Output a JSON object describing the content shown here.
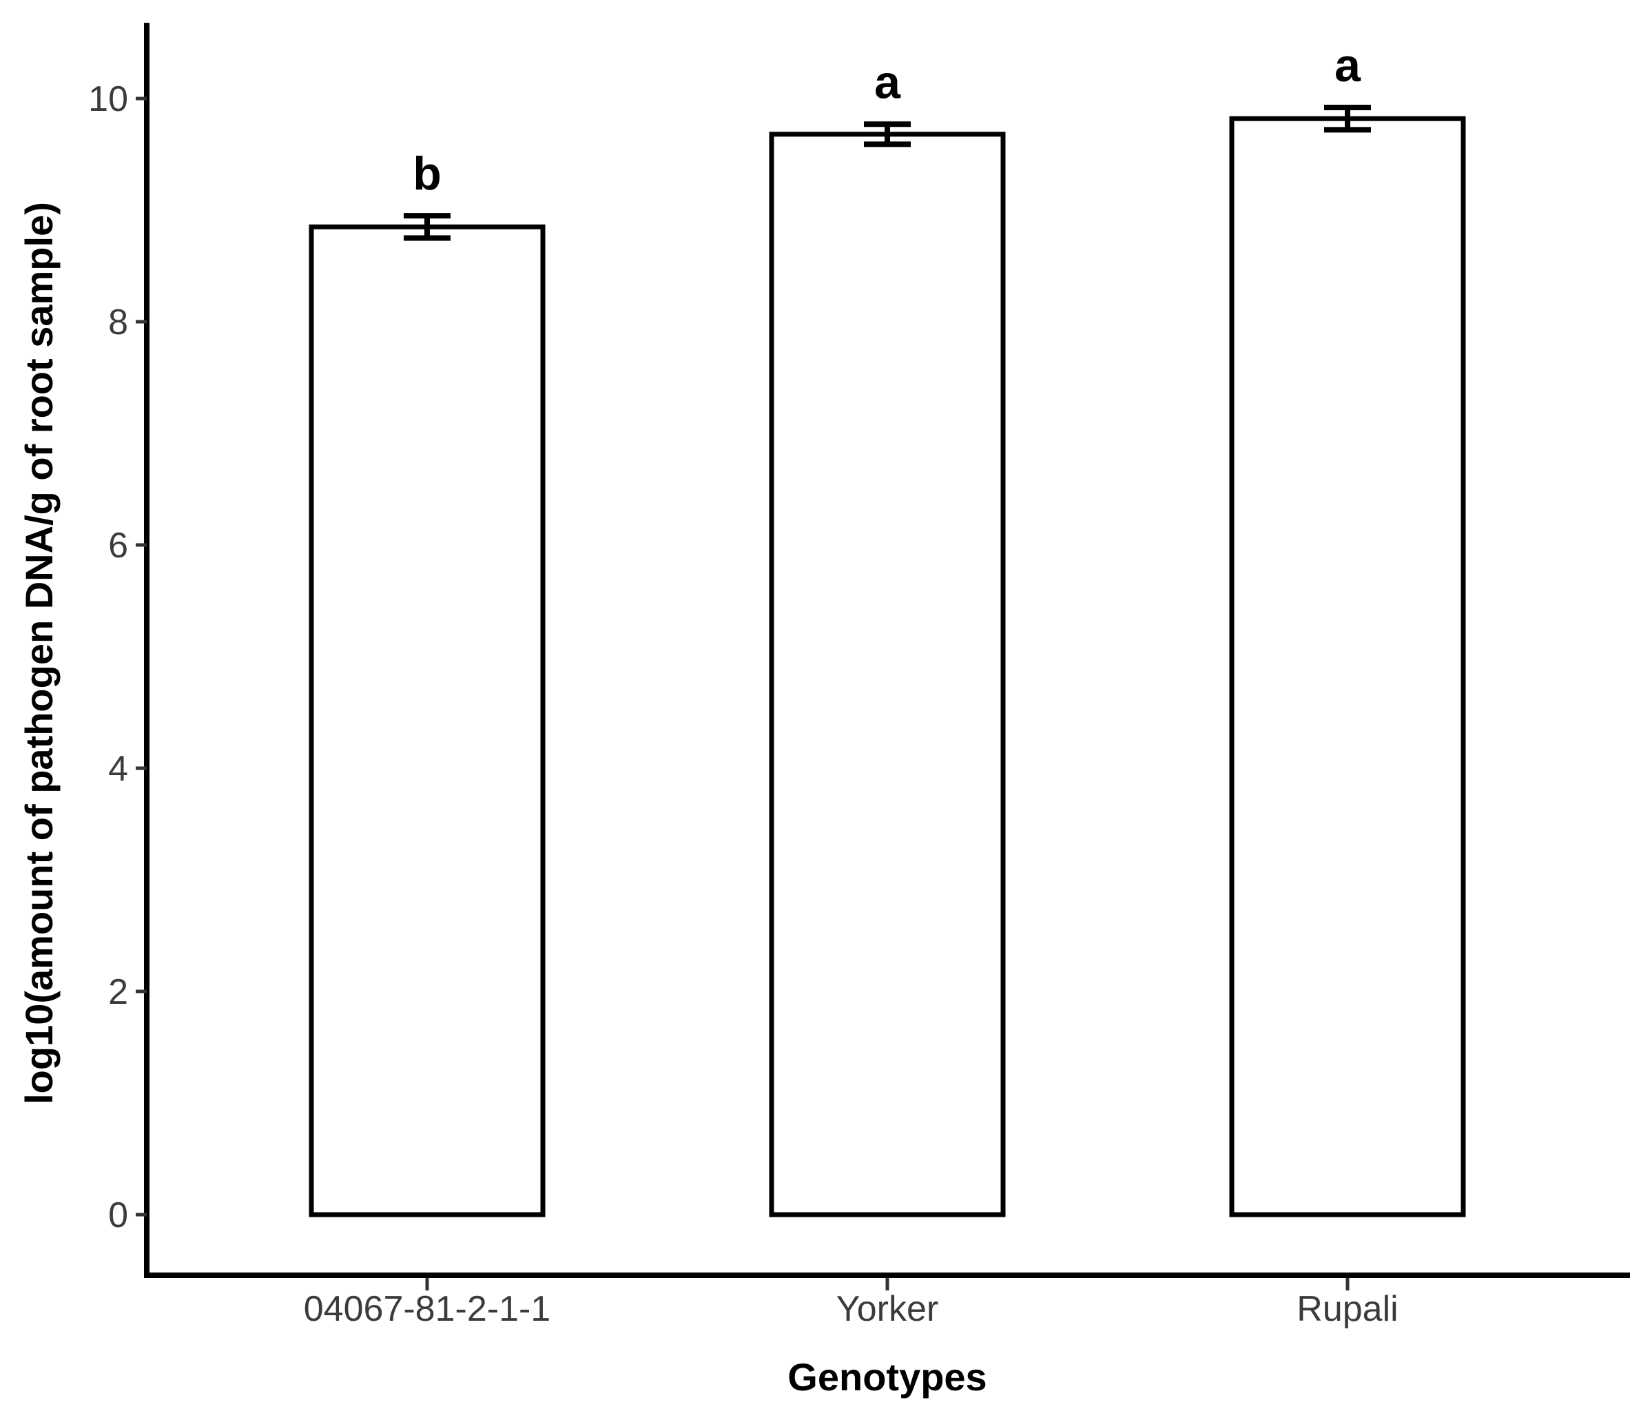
{
  "chart_data": {
    "type": "bar",
    "title": "",
    "xlabel": "Genotypes",
    "ylabel": "log10(amount of pathogen DNA/g of root sample)",
    "categories": [
      "04067-81-2-1-1",
      "Yorker",
      "Rupali"
    ],
    "values": [
      8.85,
      9.68,
      9.82
    ],
    "error_bars": [
      0.1,
      0.09,
      0.1
    ],
    "significance_letters": [
      "b",
      "a",
      "a"
    ],
    "y_ticks": [
      0,
      2,
      4,
      6,
      8,
      10
    ],
    "ylim": [
      0,
      10.6
    ],
    "grid": false,
    "legend": false,
    "styles": {
      "background": "#ffffff",
      "bar_fill": "#ffffff",
      "bar_border": "#000000",
      "axis_line_color": "#000000",
      "tick_mark_color": "#333333",
      "tick_label_color": "#3b3b3b",
      "axis_title_color": "#000000",
      "letter_color": "#000000"
    }
  }
}
